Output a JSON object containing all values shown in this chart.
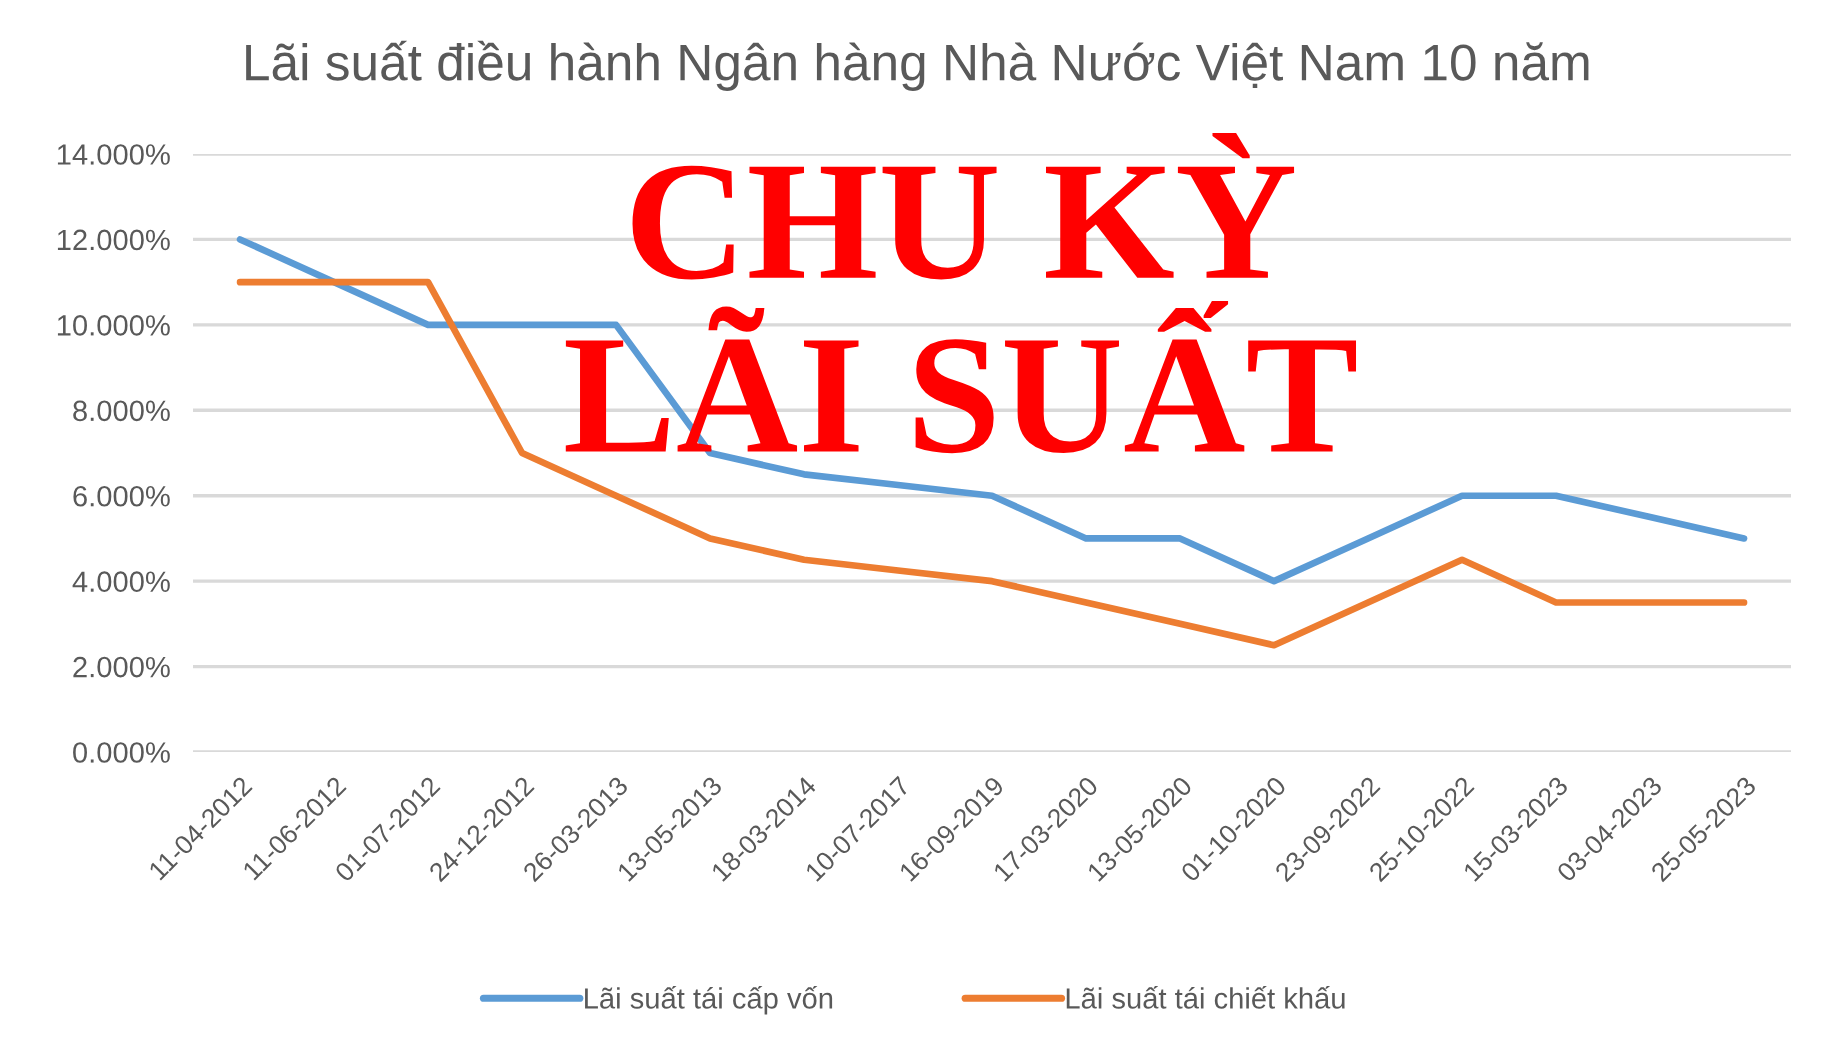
{
  "chart_data": {
    "type": "line",
    "title": "Lãi suất điều hành Ngân hàng Nhà Nước Việt Nam 10 năm",
    "categories": [
      "11-04-2012",
      "11-06-2012",
      "01-07-2012",
      "24-12-2012",
      "26-03-2013",
      "13-05-2013",
      "18-03-2014",
      "10-07-2017",
      "16-09-2019",
      "17-03-2020",
      "13-05-2020",
      "01-10-2020",
      "23-09-2022",
      "25-10-2022",
      "15-03-2023",
      "03-04-2023",
      "25-05-2023"
    ],
    "series": [
      {
        "name": "Lãi suất tái cấp vốn",
        "color": "#5b9bd5",
        "values": [
          12,
          11,
          10,
          10,
          10,
          7,
          6.5,
          6.25,
          6,
          5,
          5,
          4,
          5,
          6,
          6,
          5.5,
          5
        ]
      },
      {
        "name": "Lãi suất tái chiết khấu",
        "color": "#ed7d31",
        "values": [
          11,
          11,
          11,
          7,
          6,
          5,
          4.5,
          4.25,
          4,
          3.5,
          3,
          2.5,
          3.5,
          4.5,
          3.5,
          3.5,
          3.5
        ]
      }
    ],
    "ylim": [
      0,
      14
    ],
    "yticks": [
      {
        "value": 0,
        "label": "0.000%"
      },
      {
        "value": 2,
        "label": "2.000%"
      },
      {
        "value": 4,
        "label": "4.000%"
      },
      {
        "value": 6,
        "label": "6.000%"
      },
      {
        "value": 8,
        "label": "8.000%"
      },
      {
        "value": 10,
        "label": "10.000%"
      },
      {
        "value": 12,
        "label": "12.000%"
      },
      {
        "value": 14,
        "label": "14.000%"
      }
    ],
    "grid": "y",
    "legend": "bottom",
    "marker": "none",
    "line_style": "solid",
    "annotations": [
      "CHU KỲ\nLÃI SUẤT"
    ]
  }
}
